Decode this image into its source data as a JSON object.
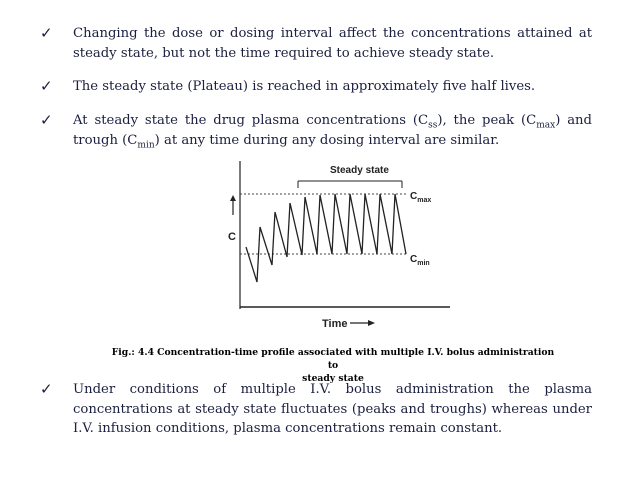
{
  "bullets": [
    {
      "icon": "check-icon",
      "text": "Changing the dose or dosing interval affect the concentrations attained at steady state, but not the time required to achieve steady state."
    },
    {
      "icon": "check-icon",
      "text": "The steady state (Plateau) is reached in approximately five half  lives."
    },
    {
      "icon": "check-icon",
      "parts": [
        "At steady state the drug plasma concentrations (C",
        "ss",
        "), the peak (C",
        "max",
        ") and trough (C",
        "min",
        ") at any time during any dosing interval are similar."
      ]
    },
    {
      "icon": "check-icon",
      "text": "Under conditions of multiple I.V. bolus administration the plasma concentrations at steady state fluctuates (peaks and troughs) whereas under  I.V.   infusion   conditions, plasma concentrations remain constant."
    }
  ],
  "figure": {
    "steady_state_label": "Steady state",
    "y_axis_label": "C",
    "x_axis_label": "Time",
    "cmax_label": [
      "C",
      "max"
    ],
    "cmin_label": [
      "C",
      "min"
    ]
  },
  "caption": {
    "line1": "Fig.: 4.4 Concentration-time profile associated with multiple I.V. bolus administration to",
    "line2": "steady state"
  }
}
